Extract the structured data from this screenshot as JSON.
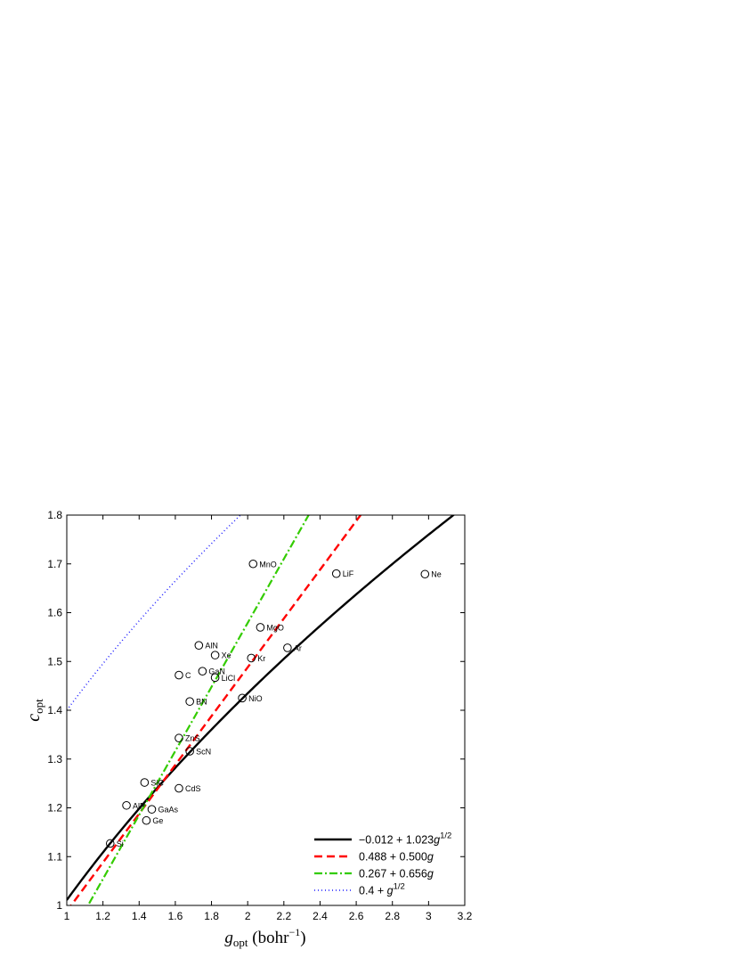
{
  "chart_data": {
    "type": "scatter",
    "xlabel": {
      "main": "g",
      "sub": "opt",
      "unit_open": " (bohr",
      "unit_sup": "−1",
      "unit_close": ")"
    },
    "ylabel": {
      "main": "c",
      "sub": "opt"
    },
    "xlim": [
      1,
      3.2
    ],
    "ylim": [
      1,
      1.8
    ],
    "xticks": [
      1,
      1.2,
      1.4,
      1.6,
      1.8,
      2,
      2.2,
      2.4,
      2.6,
      2.8,
      3,
      3.2
    ],
    "xtick_labels": [
      "1",
      "1.2",
      "1.4",
      "1.6",
      "1.8",
      "2",
      "2.2",
      "2.4",
      "2.6",
      "2.8",
      "3",
      "3.2"
    ],
    "yticks": [
      1,
      1.1,
      1.2,
      1.3,
      1.4,
      1.5,
      1.6,
      1.7,
      1.8
    ],
    "ytick_labels": [
      "1",
      "1.1",
      "1.2",
      "1.3",
      "1.4",
      "1.5",
      "1.6",
      "1.7",
      "1.8"
    ],
    "grid": false,
    "legend_position": "bottom-right",
    "points": [
      {
        "label": "Si",
        "x": 1.24,
        "y": 1.127
      },
      {
        "label": "Ge",
        "x": 1.44,
        "y": 1.174
      },
      {
        "label": "GaAs",
        "x": 1.47,
        "y": 1.197
      },
      {
        "label": "AlP",
        "x": 1.33,
        "y": 1.205
      },
      {
        "label": "CdS",
        "x": 1.62,
        "y": 1.24
      },
      {
        "label": "SiC",
        "x": 1.43,
        "y": 1.252
      },
      {
        "label": "ScN",
        "x": 1.68,
        "y": 1.316
      },
      {
        "label": "ZnS",
        "x": 1.62,
        "y": 1.343
      },
      {
        "label": "BN",
        "x": 1.68,
        "y": 1.418
      },
      {
        "label": "NiO",
        "x": 1.97,
        "y": 1.425
      },
      {
        "label": "LiCl",
        "x": 1.82,
        "y": 1.467
      },
      {
        "label": "C",
        "x": 1.62,
        "y": 1.472
      },
      {
        "label": "GaN",
        "x": 1.75,
        "y": 1.48
      },
      {
        "label": "Kr",
        "x": 2.02,
        "y": 1.507
      },
      {
        "label": "Xe",
        "x": 1.82,
        "y": 1.513
      },
      {
        "label": "Ar",
        "x": 2.22,
        "y": 1.528
      },
      {
        "label": "AlN",
        "x": 1.73,
        "y": 1.533
      },
      {
        "label": "MgO",
        "x": 2.07,
        "y": 1.57
      },
      {
        "label": "LiF",
        "x": 2.49,
        "y": 1.68
      },
      {
        "label": "Ne",
        "x": 2.98,
        "y": 1.679
      },
      {
        "label": "MnO",
        "x": 2.03,
        "y": 1.7
      }
    ],
    "series": [
      {
        "name": {
          "pre": "−0.012 + 1.023",
          "var": "g",
          "sup": "1/2",
          "post": ""
        },
        "model": "sqrt",
        "a": -0.012,
        "b": 1.023,
        "color": "#000000",
        "dash": "",
        "width": 2.4
      },
      {
        "name": {
          "pre": "0.488 + 0.500",
          "var": "g",
          "sup": "",
          "post": ""
        },
        "model": "linear",
        "a": 0.488,
        "b": 0.5,
        "color": "#ff0000",
        "dash": "9,5",
        "width": 2.4
      },
      {
        "name": {
          "pre": "0.267 + 0.656",
          "var": "g",
          "sup": "",
          "post": ""
        },
        "model": "linear",
        "a": 0.267,
        "b": 0.656,
        "color": "#33cc00",
        "dash": "9,3,2,3",
        "width": 2.2
      },
      {
        "name": {
          "pre": "0.4 + ",
          "var": "g",
          "sup": "1/2",
          "post": ""
        },
        "model": "sqrt",
        "a": 0.4,
        "b": 1,
        "color": "#1a1aff",
        "dash": "1,3",
        "width": 1.5
      }
    ]
  }
}
